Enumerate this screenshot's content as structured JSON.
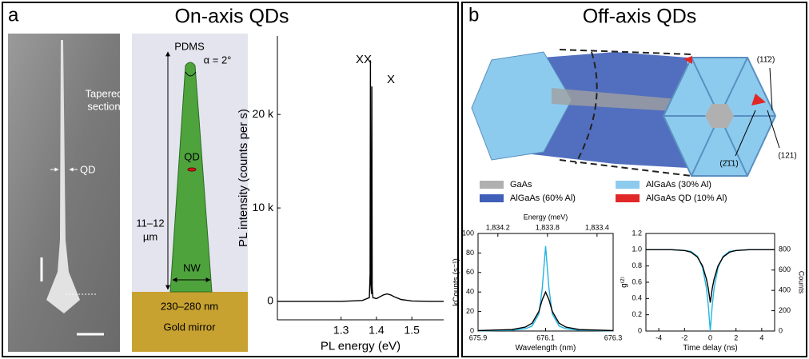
{
  "panel_a": {
    "label": "a",
    "title": "On-axis QDs",
    "sem": {
      "tapered": [
        "Tapered",
        "section"
      ],
      "qd": "QD"
    },
    "schematic": {
      "pdms": "PDMS",
      "alpha": "α = 2°",
      "length": [
        "11–12",
        "µm"
      ],
      "qd": "QD",
      "nw": "NW",
      "width": "230–280 nm",
      "mirror": "Gold mirror"
    }
  },
  "panel_b": {
    "label": "b",
    "title": "Off-axis QDs",
    "facets": [
      "(11̄2)",
      "(2̄1̄1)",
      "(121)"
    ],
    "legend": [
      {
        "name": "GaAs",
        "color": "#b0b0b0"
      },
      {
        "name": "AlGaAs (30% Al)",
        "color": "#8ccbee"
      },
      {
        "name": "AlGaAs (60% Al)",
        "color": "#3f5fb8"
      },
      {
        "name": "AlGaAs QD (10% Al)",
        "color": "#e02828"
      }
    ]
  },
  "chart_data": [
    {
      "type": "line",
      "x_label": "PL energy (eV)",
      "y_label": "PL intensity (counts per s)",
      "annotations": [
        "XX",
        "X"
      ],
      "xlim": [
        1.12,
        1.59
      ],
      "ylim": [
        -1970,
        28400
      ],
      "xticks": [
        1.3,
        1.4,
        1.5
      ],
      "yticks": [
        0,
        {
          "value": 10000,
          "label": "10 k"
        },
        {
          "value": 20000,
          "label": "20 k"
        }
      ],
      "series": [
        {
          "color": "#000000",
          "x": [
            1.12,
            1.2,
            1.3,
            1.36,
            1.38,
            1.382,
            1.383,
            1.384,
            1.386,
            1.387,
            1.388,
            1.39,
            1.4,
            1.41,
            1.42,
            1.43,
            1.44,
            1.45,
            1.47,
            1.5,
            1.55,
            1.59
          ],
          "values": [
            0,
            0,
            0,
            100,
            400,
            3000,
            25800,
            2000,
            800,
            23000,
            1500,
            400,
            300,
            500,
            700,
            800,
            700,
            500,
            200,
            50,
            0,
            0
          ]
        }
      ]
    },
    {
      "type": "line",
      "x_label": "Wavelength (nm)",
      "x2_label": "Energy (meV)",
      "y_label": "kCounts (s⁻¹)",
      "xlim": [
        675.9,
        676.3
      ],
      "xticks": [
        675.9,
        676.1,
        676.3
      ],
      "x2lim": [
        1834.36,
        1833.27
      ],
      "x2ticks": [
        {
          "value": 1834.2,
          "label": "1,834.2"
        },
        {
          "value": 1833.8,
          "label": "1,833.8"
        },
        {
          "value": 1833.4,
          "label": "1,833.4"
        }
      ],
      "ylim": [
        0,
        100
      ],
      "yticks": [
        0,
        20,
        40,
        60,
        80,
        100
      ],
      "series": [
        {
          "color": "#22b5e0",
          "x": [
            675.9,
            676.0,
            676.04,
            676.06,
            676.08,
            676.09,
            676.1,
            676.11,
            676.12,
            676.14,
            676.16,
            676.2,
            676.3
          ],
          "values": [
            0.2,
            0.86,
            2.35,
            5.1,
            17.4,
            43.5,
            87,
            43.5,
            17.4,
            5.1,
            2.35,
            0.86,
            0.2
          ]
        },
        {
          "color": "#000000",
          "x": [
            675.9,
            676.0,
            676.04,
            676.06,
            676.08,
            676.09,
            676.1,
            676.11,
            676.12,
            676.14,
            676.16,
            676.2,
            676.3
          ],
          "values": [
            0.4,
            1.5,
            4,
            8,
            20,
            32,
            40,
            32,
            20,
            8,
            4,
            1.5,
            0.4
          ]
        }
      ]
    },
    {
      "type": "line",
      "x_label": "Time delay (ns)",
      "y_label": "g⁽²⁾",
      "y2_label": "Counts",
      "xlim": [
        -5,
        5
      ],
      "xticks": [
        -4,
        -2,
        0,
        2,
        4
      ],
      "ylim": [
        0,
        1.2
      ],
      "yticks": [
        0,
        0.2,
        0.4,
        0.6,
        0.8,
        {
          "value": 1,
          "label": "1.0"
        },
        1.2
      ],
      "y2lim": [
        0,
        960
      ],
      "y2ticks": [
        0,
        200,
        400,
        600,
        800
      ],
      "series": [
        {
          "color": "#22b5e0",
          "x": [
            -5,
            -3,
            -2,
            -1.5,
            -1,
            -0.6,
            -0.3,
            -0.15,
            0,
            0.15,
            0.3,
            0.6,
            1,
            1.5,
            2,
            3,
            5
          ],
          "values": [
            1,
            1,
            0.99,
            0.98,
            0.92,
            0.78,
            0.53,
            0.31,
            0,
            0.31,
            0.53,
            0.78,
            0.92,
            0.98,
            0.99,
            1,
            1
          ]
        },
        {
          "color": "#000000",
          "x": [
            -5,
            -3,
            -2,
            -1.5,
            -1,
            -0.6,
            -0.3,
            -0.15,
            0,
            0.15,
            0.3,
            0.6,
            1,
            1.5,
            2,
            3,
            5
          ],
          "values": [
            1,
            1,
            0.99,
            0.97,
            0.91,
            0.8,
            0.64,
            0.52,
            0.35,
            0.52,
            0.64,
            0.8,
            0.91,
            0.97,
            0.99,
            1,
            1
          ]
        }
      ]
    }
  ]
}
